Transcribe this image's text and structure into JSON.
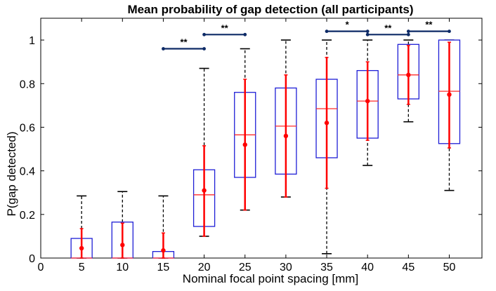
{
  "chart_data": {
    "type": "boxplot",
    "title": "Mean probability of gap detection (all participants)",
    "xlabel": "Nominal focal point spacing [mm]",
    "ylabel": "P(gap detected)",
    "xlim": [
      0,
      54
    ],
    "ylim": [
      0,
      1.1
    ],
    "xticks": [
      0,
      5,
      10,
      15,
      20,
      25,
      30,
      35,
      40,
      45,
      50
    ],
    "yticks": [
      0,
      0.2,
      0.4,
      0.6,
      0.8,
      1
    ],
    "grid": false,
    "colors": {
      "box": "#1f1fd6",
      "median": "#ff2a2a",
      "whisker": "#000000",
      "mean": "#ff0000",
      "bracket": "#0d2a66"
    },
    "boxes": [
      {
        "x": 5,
        "min": 0,
        "q1": 0,
        "median": 0,
        "q3": 0.09,
        "max": 0.285,
        "mean": 0.045,
        "err_low": 0,
        "err_high": 0.135
      },
      {
        "x": 10,
        "min": 0,
        "q1": 0,
        "median": 0,
        "q3": 0.165,
        "max": 0.305,
        "mean": 0.06,
        "err_low": 0,
        "err_high": 0.16
      },
      {
        "x": 15,
        "min": 0,
        "q1": 0,
        "median": 0,
        "q3": 0.03,
        "max": 0.285,
        "mean": 0.035,
        "err_low": 0,
        "err_high": 0.115
      },
      {
        "x": 20,
        "min": 0.1,
        "q1": 0.145,
        "median": 0.29,
        "q3": 0.405,
        "max": 0.87,
        "mean": 0.31,
        "err_low": 0.1,
        "err_high": 0.515
      },
      {
        "x": 25,
        "min": 0.22,
        "q1": 0.37,
        "median": 0.565,
        "q3": 0.76,
        "max": 0.96,
        "mean": 0.52,
        "err_low": 0.22,
        "err_high": 0.82
      },
      {
        "x": 30,
        "min": 0.28,
        "q1": 0.385,
        "median": 0.605,
        "q3": 0.78,
        "max": 1.0,
        "mean": 0.56,
        "err_low": 0.28,
        "err_high": 0.84
      },
      {
        "x": 35,
        "min": 0.02,
        "q1": 0.46,
        "median": 0.685,
        "q3": 0.82,
        "max": 1.0,
        "mean": 0.62,
        "err_low": 0.32,
        "err_high": 0.92
      },
      {
        "x": 40,
        "min": 0.425,
        "q1": 0.55,
        "median": 0.72,
        "q3": 0.86,
        "max": 1.0,
        "mean": 0.72,
        "err_low": 0.54,
        "err_high": 0.9
      },
      {
        "x": 45,
        "min": 0.625,
        "q1": 0.73,
        "median": 0.84,
        "q3": 0.98,
        "max": 1.0,
        "mean": 0.84,
        "err_low": 0.705,
        "err_high": 0.975
      },
      {
        "x": 50,
        "min": 0.31,
        "q1": 0.525,
        "median": 0.765,
        "q3": 1.0,
        "max": 1.0,
        "mean": 0.75,
        "err_low": 0.505,
        "err_high": 0.99
      }
    ],
    "significance": [
      {
        "from": 15,
        "to": 20,
        "y": 0.96,
        "label": "**"
      },
      {
        "from": 20,
        "to": 25,
        "y": 1.025,
        "label": "**"
      },
      {
        "from": 35,
        "to": 40,
        "y": 1.04,
        "label": "*"
      },
      {
        "from": 40,
        "to": 45,
        "y": 1.025,
        "label": "**"
      },
      {
        "from": 45,
        "to": 50,
        "y": 1.04,
        "label": "**"
      }
    ]
  }
}
